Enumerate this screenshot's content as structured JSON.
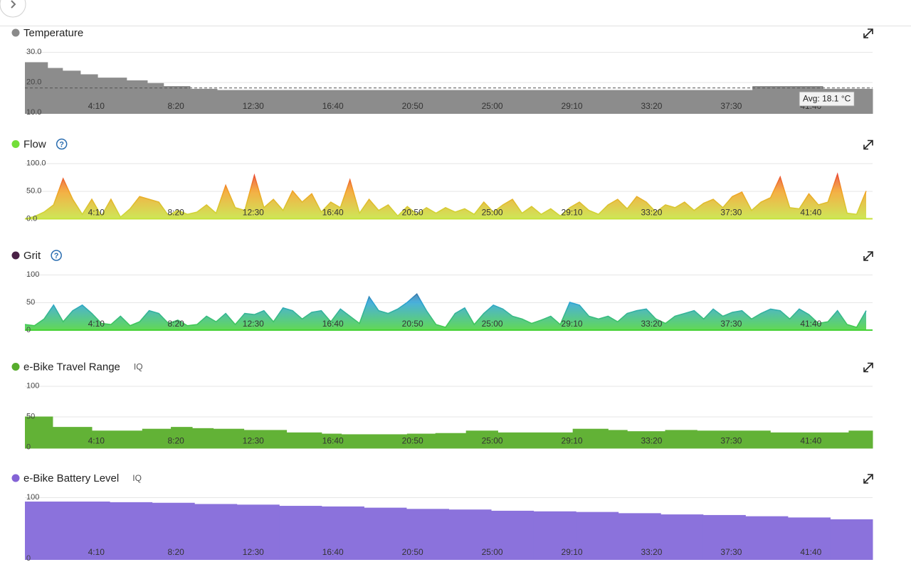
{
  "chart_data": [
    {
      "type": "step",
      "title": "Temperature",
      "color": "#8a8a8a",
      "fill": "#8c8c8c",
      "x": [
        0,
        71,
        118,
        174,
        228,
        319,
        384,
        435,
        518,
        603,
        2283,
        2504
      ],
      "values": [
        26.6,
        24.7,
        23.8,
        22.6,
        21.5,
        20.6,
        19.7,
        18.7,
        17.8,
        17.4,
        18.7,
        17.8
      ],
      "avg": 18.1,
      "avg_label": "Avg: 18.1 °C",
      "xlim": [
        0,
        2660
      ],
      "xticks": [
        {
          "value": 250,
          "label": "4:10"
        },
        {
          "value": 500,
          "label": "8:20"
        },
        {
          "value": 750,
          "label": "12:30"
        },
        {
          "value": 1000,
          "label": "16:40"
        },
        {
          "value": 1250,
          "label": "20:50"
        },
        {
          "value": 1500,
          "label": "25:00"
        },
        {
          "value": 1750,
          "label": "29:10"
        },
        {
          "value": 2000,
          "label": "33:20"
        },
        {
          "value": 2250,
          "label": "37:30"
        },
        {
          "value": 2500,
          "label": "41:40"
        }
      ],
      "ylim": [
        10,
        30
      ],
      "yticks": [
        {
          "value": 10,
          "label": "10.0"
        },
        {
          "value": 20,
          "label": "20.0"
        },
        {
          "value": 30,
          "label": "30.0"
        }
      ],
      "grid": true
    },
    {
      "type": "area",
      "title": "Flow",
      "color": "#72de38",
      "help_icon": "?",
      "gradient": [
        "#c6e23a",
        "#f3a024",
        "#e3123e"
      ],
      "x": [
        0,
        30,
        60,
        90,
        120,
        150,
        180,
        210,
        240,
        270,
        300,
        330,
        360,
        390,
        420,
        450,
        480,
        510,
        540,
        570,
        600,
        630,
        660,
        690,
        720,
        750,
        780,
        810,
        840,
        870,
        900,
        930,
        960,
        990,
        1020,
        1050,
        1080,
        1110,
        1140,
        1170,
        1200,
        1230,
        1260,
        1290,
        1320,
        1350,
        1380,
        1410,
        1440,
        1470,
        1500,
        1530,
        1560,
        1590,
        1620,
        1650,
        1680,
        1710,
        1740,
        1770,
        1800,
        1830,
        1860,
        1890,
        1920,
        1950,
        1980,
        2010,
        2040,
        2070,
        2100,
        2130,
        2160,
        2190,
        2220,
        2250,
        2280,
        2310,
        2340,
        2370,
        2400,
        2430,
        2460,
        2490,
        2520,
        2550,
        2580,
        2610,
        2640
      ],
      "values": [
        0,
        4,
        12,
        25,
        72,
        35,
        8,
        35,
        5,
        35,
        3,
        18,
        40,
        35,
        30,
        6,
        15,
        8,
        12,
        25,
        10,
        60,
        20,
        15,
        78,
        20,
        35,
        15,
        50,
        30,
        45,
        12,
        30,
        20,
        70,
        10,
        35,
        15,
        25,
        5,
        22,
        8,
        20,
        10,
        20,
        12,
        18,
        8,
        30,
        12,
        25,
        35,
        10,
        22,
        8,
        18,
        5,
        20,
        30,
        15,
        8,
        25,
        35,
        18,
        40,
        30,
        12,
        25,
        20,
        30,
        15,
        28,
        35,
        20,
        40,
        48,
        15,
        30,
        38,
        75,
        20,
        18,
        45,
        25,
        30,
        80,
        10,
        8,
        50
      ],
      "xlim": [
        0,
        2660
      ],
      "xticks": [
        {
          "value": 250,
          "label": "4:10"
        },
        {
          "value": 500,
          "label": "8:20"
        },
        {
          "value": 750,
          "label": "12:30"
        },
        {
          "value": 1000,
          "label": "16:40"
        },
        {
          "value": 1250,
          "label": "20:50"
        },
        {
          "value": 1500,
          "label": "25:00"
        },
        {
          "value": 1750,
          "label": "29:10"
        },
        {
          "value": 2000,
          "label": "33:20"
        },
        {
          "value": 2250,
          "label": "37:30"
        },
        {
          "value": 2500,
          "label": "41:40"
        }
      ],
      "ylim": [
        0,
        100
      ],
      "yticks": [
        {
          "value": 0,
          "label": "0.0"
        },
        {
          "value": 50,
          "label": "50.0"
        },
        {
          "value": 100,
          "label": "100.0"
        }
      ],
      "grid": true
    },
    {
      "type": "area",
      "title": "Grit",
      "color": "#4a2146",
      "help_icon": "?",
      "gradient": [
        "#46d236",
        "#2aa2d6",
        "#5a1f4e"
      ],
      "x": [
        0,
        30,
        60,
        90,
        120,
        150,
        180,
        210,
        240,
        270,
        300,
        330,
        360,
        390,
        420,
        450,
        480,
        510,
        540,
        570,
        600,
        630,
        660,
        690,
        720,
        750,
        780,
        810,
        840,
        870,
        900,
        930,
        960,
        990,
        1020,
        1050,
        1080,
        1110,
        1140,
        1170,
        1200,
        1230,
        1260,
        1290,
        1320,
        1350,
        1380,
        1410,
        1440,
        1470,
        1500,
        1530,
        1560,
        1590,
        1620,
        1650,
        1680,
        1710,
        1740,
        1770,
        1800,
        1830,
        1860,
        1890,
        1920,
        1950,
        1980,
        2010,
        2040,
        2070,
        2100,
        2130,
        2160,
        2190,
        2220,
        2250,
        2280,
        2310,
        2340,
        2370,
        2400,
        2430,
        2460,
        2490,
        2520,
        2550,
        2580,
        2610,
        2640
      ],
      "values": [
        10,
        8,
        20,
        45,
        15,
        35,
        45,
        30,
        12,
        10,
        25,
        8,
        15,
        35,
        30,
        12,
        18,
        8,
        10,
        25,
        15,
        30,
        10,
        30,
        28,
        35,
        15,
        40,
        35,
        20,
        32,
        35,
        15,
        38,
        25,
        12,
        60,
        35,
        30,
        38,
        50,
        65,
        35,
        10,
        5,
        30,
        40,
        10,
        30,
        45,
        38,
        25,
        20,
        12,
        18,
        25,
        10,
        50,
        45,
        25,
        20,
        25,
        15,
        30,
        35,
        38,
        20,
        12,
        25,
        30,
        35,
        20,
        38,
        25,
        32,
        35,
        20,
        30,
        38,
        35,
        20,
        38,
        28,
        12,
        15,
        35,
        10,
        5,
        35
      ],
      "xlim": [
        0,
        2660
      ],
      "xticks": [
        {
          "value": 250,
          "label": "4:10"
        },
        {
          "value": 500,
          "label": "8:20"
        },
        {
          "value": 750,
          "label": "12:30"
        },
        {
          "value": 1000,
          "label": "16:40"
        },
        {
          "value": 1250,
          "label": "20:50"
        },
        {
          "value": 1500,
          "label": "25:00"
        },
        {
          "value": 1750,
          "label": "29:10"
        },
        {
          "value": 2000,
          "label": "33:20"
        },
        {
          "value": 2250,
          "label": "37:30"
        },
        {
          "value": 2500,
          "label": "41:40"
        }
      ],
      "ylim": [
        0,
        100
      ],
      "yticks": [
        0,
        50,
        100
      ],
      "grid": true
    },
    {
      "type": "step",
      "title": "e-Bike Travel Range",
      "badge": "IQ",
      "color": "#56ac2c",
      "fill": "#62b236",
      "x": [
        0,
        87,
        210,
        368,
        458,
        525,
        591,
        687,
        821,
        931,
        993,
        1199,
        1288,
        1384,
        1484,
        1719,
        1830,
        1890,
        2009,
        2109,
        2339,
        2585
      ],
      "values": [
        50,
        33,
        27,
        30,
        33,
        31,
        30,
        28,
        24,
        22,
        21,
        22,
        23,
        27,
        24,
        30,
        28,
        26,
        28,
        27,
        24,
        27
      ],
      "xlim": [
        0,
        2660
      ],
      "xticks": [
        {
          "value": 250,
          "label": "4:10"
        },
        {
          "value": 500,
          "label": "8:20"
        },
        {
          "value": 750,
          "label": "12:30"
        },
        {
          "value": 1000,
          "label": "16:40"
        },
        {
          "value": 1250,
          "label": "20:50"
        },
        {
          "value": 1500,
          "label": "25:00"
        },
        {
          "value": 1750,
          "label": "29:10"
        },
        {
          "value": 2000,
          "label": "33:20"
        },
        {
          "value": 2250,
          "label": "37:30"
        },
        {
          "value": 2500,
          "label": "41:40"
        }
      ],
      "ylim": [
        0,
        100
      ],
      "yticks": [
        0,
        50,
        100
      ],
      "grid": true
    },
    {
      "type": "step",
      "title": "e-Bike Battery Level",
      "badge": "IQ",
      "color": "#8463d6",
      "fill": "#8b72dc",
      "x": [
        0,
        133,
        266,
        399,
        532,
        665,
        798,
        931,
        1064,
        1197,
        1330,
        1463,
        1596,
        1729,
        1862,
        1995,
        2128,
        2261,
        2394,
        2527
      ],
      "values": [
        93,
        93,
        92,
        91,
        89,
        88,
        86,
        85,
        83,
        81,
        80,
        78,
        77,
        76,
        74,
        72,
        71,
        69,
        67,
        64
      ],
      "xlim": [
        0,
        2660
      ],
      "xticks": [
        {
          "value": 250,
          "label": "4:10"
        },
        {
          "value": 500,
          "label": "8:20"
        },
        {
          "value": 750,
          "label": "12:30"
        },
        {
          "value": 1000,
          "label": "16:40"
        },
        {
          "value": 1250,
          "label": "20:50"
        },
        {
          "value": 1500,
          "label": "25:00"
        },
        {
          "value": 1750,
          "label": "29:10"
        },
        {
          "value": 2000,
          "label": "33:20"
        },
        {
          "value": 2250,
          "label": "37:30"
        },
        {
          "value": 2500,
          "label": "41:40"
        }
      ],
      "ylim": [
        0,
        100
      ],
      "yticks": [
        0,
        100
      ],
      "grid": true
    }
  ]
}
